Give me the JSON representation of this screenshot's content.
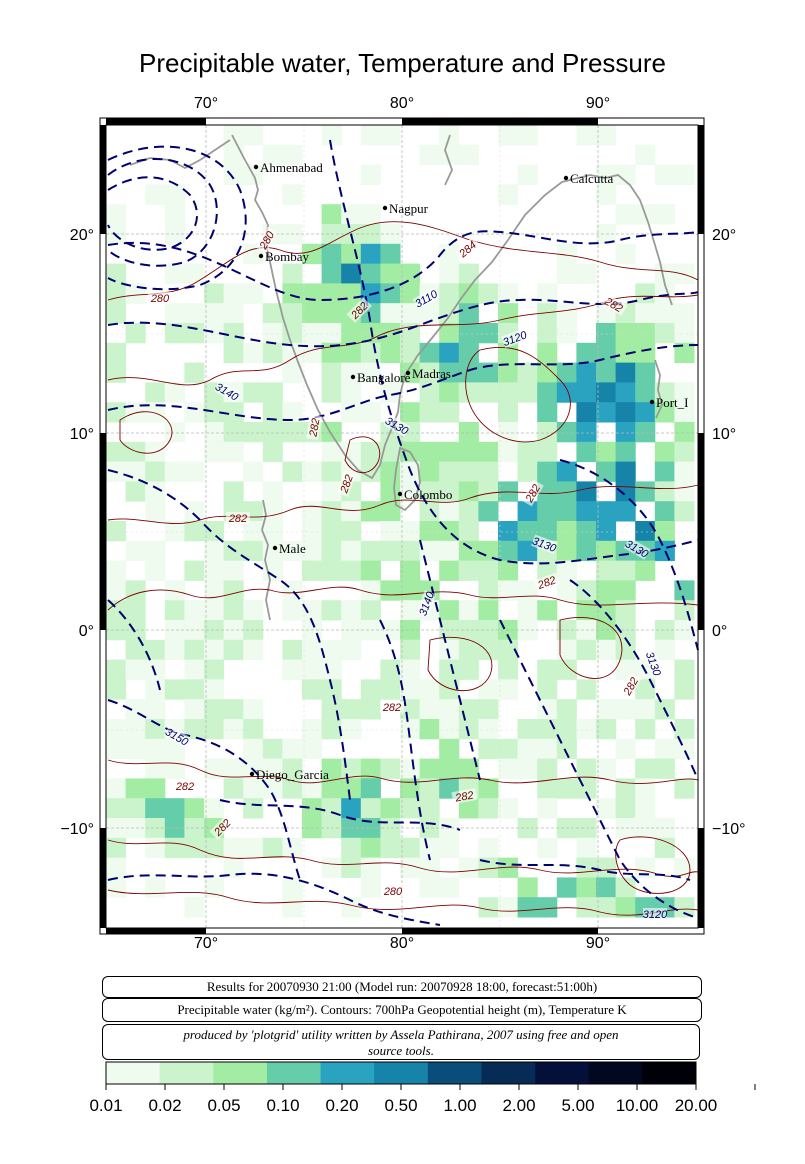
{
  "title": "Precipitable water, Temperature and Pressure",
  "axes": {
    "lon_ticks": [
      "70°",
      "80°",
      "90°"
    ],
    "lat_ticks": [
      "20°",
      "10°",
      "0°",
      "−10°"
    ]
  },
  "cities": [
    {
      "name": "Ahmenabad"
    },
    {
      "name": "Nagpur"
    },
    {
      "name": "Calcutta"
    },
    {
      "name": "Bombay"
    },
    {
      "name": "Madras"
    },
    {
      "name": "Bangalore"
    },
    {
      "name": "Port_I"
    },
    {
      "name": "Colombo"
    },
    {
      "name": "Male"
    },
    {
      "name": "Diego_Garcia"
    }
  ],
  "contour_labels": [
    "280",
    "284",
    "280",
    "3110",
    "282",
    "282",
    "3120",
    "3140",
    "282",
    "3130",
    "282",
    "282",
    "282",
    "3130",
    "3130",
    "282",
    "3140",
    "3130",
    "282",
    "282",
    "3150",
    "282",
    "282",
    "282",
    "280",
    "3120"
  ],
  "info": {
    "results": "Results for 20070930 21:00 (Model run: 20070928 18:00, forecast:51:00h)",
    "description": "Precipitable water (kg/m²).  Contours: 700hPa Geopotential height (m), Temperature K",
    "credit_line1": "produced by 'plotgrid' utility written by Assela Pathirana, 2007 using free and open",
    "credit_line2": "source tools."
  },
  "colorbar": {
    "labels": [
      "0.01",
      "0.02",
      "0.05",
      "0.10",
      "0.20",
      "0.50",
      "1.00",
      "2.00",
      "5.00",
      "10.00",
      "20.00"
    ],
    "colors": [
      "#eefbee",
      "#ccf4cc",
      "#a3eca3",
      "#66cdaa",
      "#2aa3c0",
      "#1683a8",
      "#0a4d7a",
      "#062b55",
      "#040f3a",
      "#02081f",
      "#000008"
    ]
  },
  "colors": {
    "land_outline": "#999999",
    "temperature_contour": "#7a0000",
    "height_contour": "#00006e"
  }
}
